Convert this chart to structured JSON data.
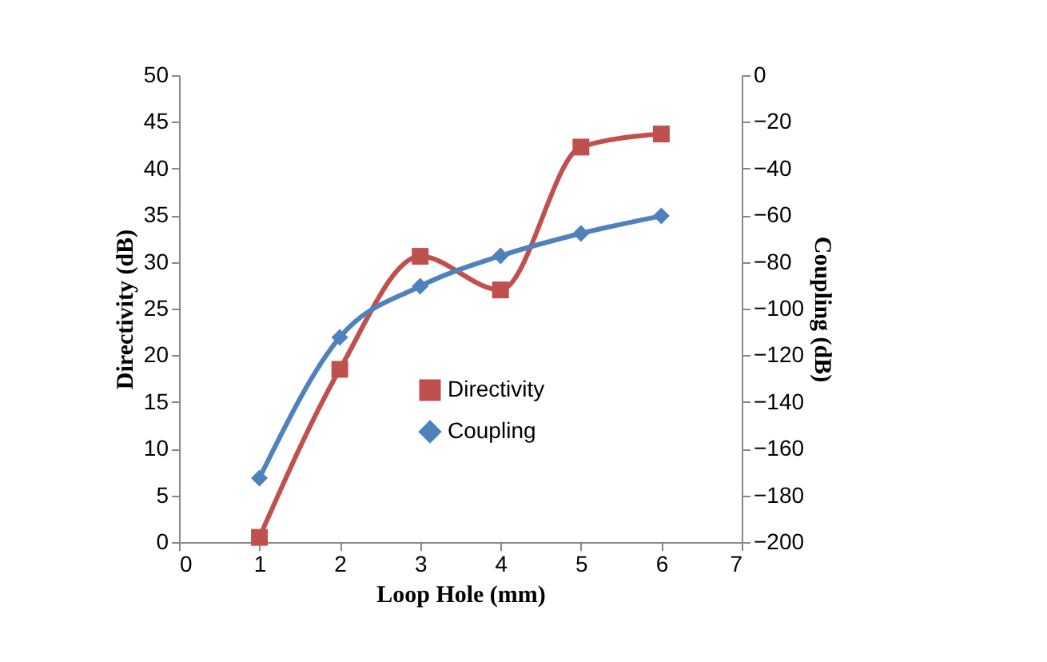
{
  "chart_data": {
    "type": "line",
    "xlabel": "Loop Hole (mm)",
    "ylabel": "Directivity (dB)",
    "y2label": "Coupling (dB)",
    "x": [
      1,
      2,
      3,
      4,
      5,
      6
    ],
    "xlim": [
      0,
      7
    ],
    "xticks": [
      0,
      1,
      2,
      3,
      4,
      5,
      6,
      7
    ],
    "ylim": [
      0,
      50
    ],
    "yticks": [
      0,
      5,
      10,
      15,
      20,
      25,
      30,
      35,
      40,
      45,
      50
    ],
    "y2lim": [
      -200,
      0
    ],
    "y2ticks": [
      -200,
      -180,
      -160,
      -140,
      -120,
      -100,
      -80,
      -60,
      -40,
      -20,
      0
    ],
    "series": [
      {
        "name": "Directivity",
        "color": "#c0504d",
        "marker": "square",
        "values": [
          0.5,
          18.5,
          30.6,
          27,
          42.3,
          43.7
        ]
      },
      {
        "name": "Coupling",
        "color": "#4f81bd",
        "marker": "diamond",
        "axis": "y2",
        "values": [
          -172.6,
          -112.3,
          -90.4,
          -77.4,
          -67.8,
          -60.3
        ]
      }
    ],
    "grid": false,
    "legend": "center",
    "line_style": "solid"
  }
}
